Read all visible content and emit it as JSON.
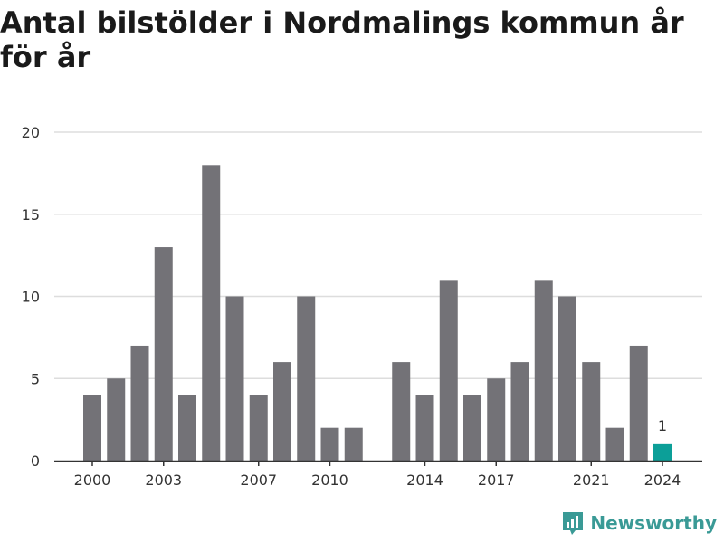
{
  "title": "Antal bilstölder i Nordmalings kommun år för år",
  "brand": "Newsworthy",
  "colors": {
    "bar": "#737277",
    "highlight": "#0c9f98",
    "grid": "#dddddd",
    "axis": "#333333",
    "brand": "#3a9a96"
  },
  "icons": {
    "brand": "newsworthy-logo-icon"
  },
  "chart_data": {
    "type": "bar",
    "title": "Antal bilstölder i Nordmalings kommun år för år",
    "xlabel": "",
    "ylabel": "",
    "ylim": [
      0,
      20
    ],
    "yticks": [
      0,
      5,
      10,
      15,
      20
    ],
    "grid": true,
    "xtick_labels": [
      "2000",
      "2003",
      "2007",
      "2010",
      "2014",
      "2017",
      "2021",
      "2024"
    ],
    "categories": [
      "2000",
      "2001",
      "2002",
      "2003",
      "2004",
      "2005",
      "2006",
      "2007",
      "2008",
      "2009",
      "2010",
      "2011",
      "2012",
      "2013",
      "2014",
      "2015",
      "2016",
      "2017",
      "2018",
      "2019",
      "2020",
      "2021",
      "2022",
      "2023",
      "2024"
    ],
    "values": [
      4,
      5,
      7,
      13,
      4,
      18,
      10,
      4,
      6,
      10,
      2,
      2,
      0,
      6,
      4,
      11,
      4,
      5,
      6,
      11,
      10,
      6,
      2,
      7,
      1
    ],
    "highlight": "2024",
    "data_labels": [
      {
        "category": "2024",
        "text": "1"
      }
    ]
  }
}
